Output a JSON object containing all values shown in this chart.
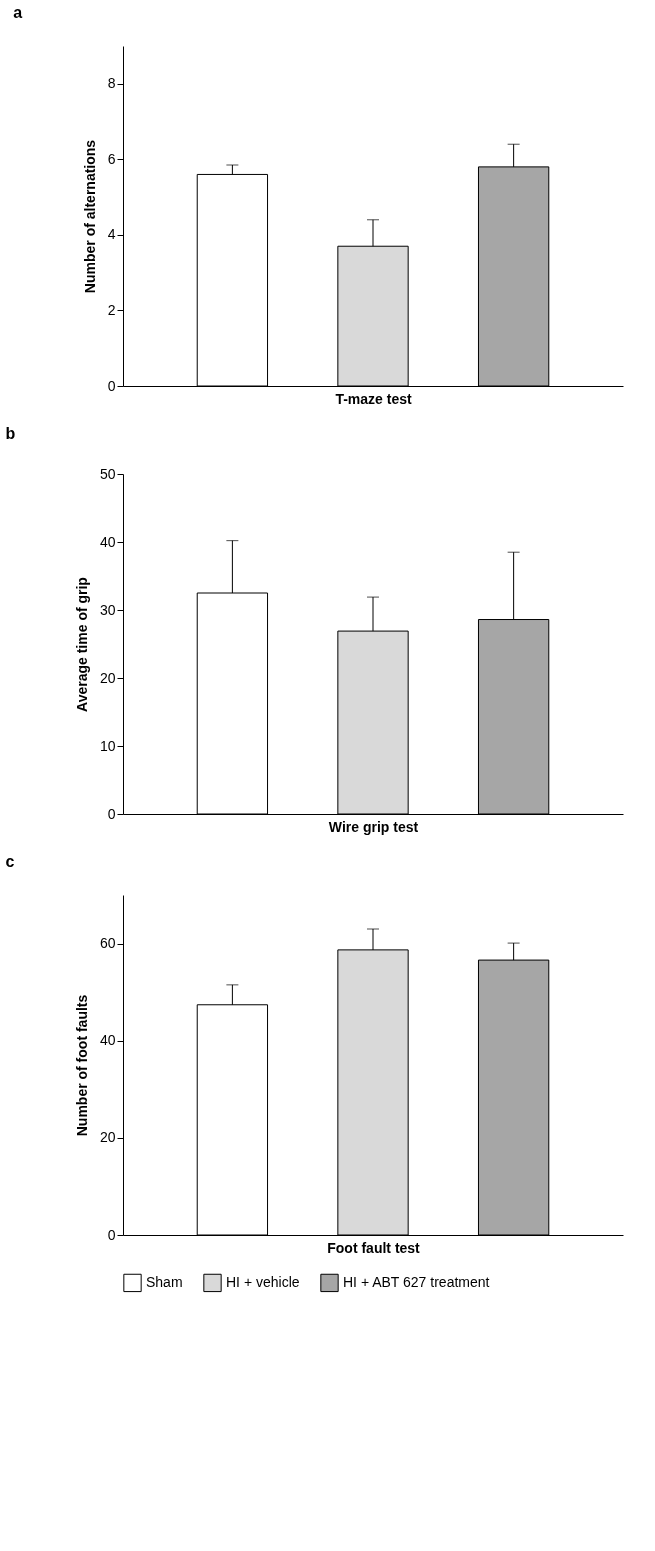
{
  "chart_data": [
    {
      "type": "bar",
      "title": "a",
      "xlabel": "T-maze test",
      "ylabel": "Number of alternations",
      "categories": [
        null
      ],
      "ylim": [
        0,
        9
      ],
      "yticks": [
        0,
        2,
        4,
        6,
        8
      ],
      "grid": false,
      "legend": false,
      "series": [
        {
          "color": "#ffffff",
          "values": [
            5.6
          ],
          "errors": [
            [
              5.6,
              5.85
            ]
          ]
        },
        {
          "color": "#d9d9d9",
          "values": [
            3.7
          ],
          "errors": [
            [
              3.7,
              4.4
            ]
          ]
        },
        {
          "color": "#a6a6a6",
          "values": [
            5.8
          ],
          "errors": [
            [
              5.8,
              6.4
            ]
          ]
        }
      ]
    },
    {
      "type": "bar",
      "title": "b",
      "xlabel": "Wire grip test",
      "ylabel": "Average time of grip",
      "categories": [
        null
      ],
      "ylim": [
        0,
        50
      ],
      "yticks": [
        0,
        10,
        20,
        30,
        40,
        50
      ],
      "grid": false,
      "legend": false,
      "series": [
        {
          "color": "#ffffff",
          "values": [
            32.5
          ],
          "errors": [
            [
              32.5,
              40.2
            ]
          ]
        },
        {
          "color": "#d9d9d9",
          "values": [
            26.9
          ],
          "errors": [
            [
              26.9,
              31.9
            ]
          ]
        },
        {
          "color": "#a6a6a6",
          "values": [
            28.6
          ],
          "errors": [
            [
              28.6,
              38.5
            ]
          ]
        }
      ]
    },
    {
      "type": "bar",
      "title": "c",
      "xlabel": "Foot fault test",
      "ylabel": "Number of foot faults",
      "categories": [
        null
      ],
      "ylim": [
        0,
        70
      ],
      "yticks": [
        0,
        20,
        40,
        60
      ],
      "grid": false,
      "legend": "bottom",
      "series": [
        {
          "name": "Sham",
          "color": "#ffffff",
          "values": [
            47.4
          ],
          "errors": [
            [
              47.4,
              51.5
            ]
          ]
        },
        {
          "name": "HI + vehicle",
          "color": "#d9d9d9",
          "values": [
            58.7
          ],
          "errors": [
            [
              58.7,
              63.0
            ]
          ]
        },
        {
          "name": "HI + ABT 627 treatment",
          "color": "#a6a6a6",
          "values": [
            56.6
          ],
          "errors": [
            [
              56.6,
              60.1
            ]
          ]
        }
      ]
    }
  ]
}
